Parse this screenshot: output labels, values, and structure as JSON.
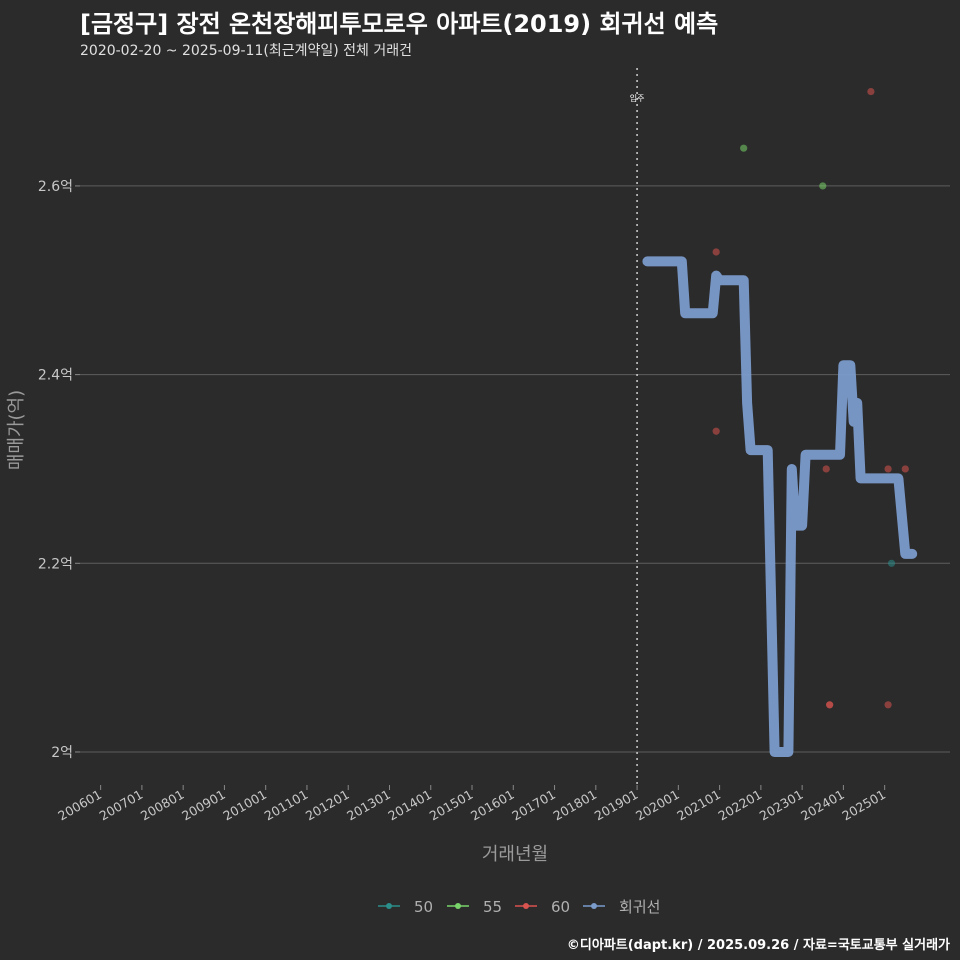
{
  "header": {
    "title": "[금정구] 장전 온천장해피투모로우 아파트(2019) 회귀선 예측",
    "subtitle": "2020-02-20 ~ 2025-09-11(최근계약일) 전체 거래건",
    "caption": "©디아파트(dapt.kr) / 2025.09.26 / 자료=국토교통부 실거래가"
  },
  "colors": {
    "background": "#2b2b2c",
    "grid": "#5e5e5e",
    "s50": "#2a8e8a",
    "s55": "#79d46a",
    "s60": "#d9534f",
    "regression": "#7b9bcb"
  },
  "chart_data": {
    "type": "line",
    "xlabel": "거래년월",
    "ylabel": "매매가(억)",
    "x_range": [
      "2005-07",
      "2026-08"
    ],
    "ylim": [
      1.965,
      2.725
    ],
    "y_ticks": [
      {
        "value": 2.0,
        "label": "2억"
      },
      {
        "value": 2.2,
        "label": "2.2억"
      },
      {
        "value": 2.4,
        "label": "2.4억"
      },
      {
        "value": 2.6,
        "label": "2.6억"
      }
    ],
    "x_ticks": [
      "200601",
      "200701",
      "200801",
      "200901",
      "201001",
      "201101",
      "201201",
      "201301",
      "201401",
      "201501",
      "201601",
      "201701",
      "201801",
      "201901",
      "202001",
      "202101",
      "202201",
      "202301",
      "202401",
      "202501"
    ],
    "vline": {
      "date": "2019-01",
      "label": "입주"
    },
    "legend": [
      {
        "name": "50",
        "color": "#2a8e8a"
      },
      {
        "name": "55",
        "color": "#79d46a"
      },
      {
        "name": "60",
        "color": "#d9534f"
      },
      {
        "name": "회귀선",
        "color": "#7b9bcb"
      }
    ],
    "scatter": [
      {
        "series": "55",
        "x": "2021-08",
        "y": 2.64
      },
      {
        "series": "55",
        "x": "2023-07",
        "y": 2.6
      },
      {
        "series": "60",
        "x": "2020-12",
        "y": 2.53
      },
      {
        "series": "60",
        "x": "2020-12",
        "y": 2.34
      },
      {
        "series": "60",
        "x": "2023-08",
        "y": 2.3
      },
      {
        "series": "60",
        "x": "2023-09",
        "y": 2.05
      },
      {
        "series": "60",
        "x": "2023-09",
        "y": 2.05
      },
      {
        "series": "60",
        "x": "2024-09",
        "y": 2.7
      },
      {
        "series": "60",
        "x": "2025-02",
        "y": 2.3
      },
      {
        "series": "60",
        "x": "2025-02",
        "y": 2.05
      },
      {
        "series": "60",
        "x": "2025-07",
        "y": 2.3
      },
      {
        "series": "50",
        "x": "2025-03",
        "y": 2.2
      }
    ],
    "regression": [
      {
        "x": "2019-04",
        "y": 2.52
      },
      {
        "x": "2020-02",
        "y": 2.52
      },
      {
        "x": "2020-03",
        "y": 2.465
      },
      {
        "x": "2020-11",
        "y": 2.465
      },
      {
        "x": "2020-12",
        "y": 2.505
      },
      {
        "x": "2021-01",
        "y": 2.5
      },
      {
        "x": "2021-08",
        "y": 2.5
      },
      {
        "x": "2021-09",
        "y": 2.37
      },
      {
        "x": "2021-10",
        "y": 2.32
      },
      {
        "x": "2022-03",
        "y": 2.32
      },
      {
        "x": "2022-05",
        "y": 2.0
      },
      {
        "x": "2022-09",
        "y": 2.0
      },
      {
        "x": "2022-10",
        "y": 2.3
      },
      {
        "x": "2022-11",
        "y": 2.24
      },
      {
        "x": "2023-01",
        "y": 2.24
      },
      {
        "x": "2023-02",
        "y": 2.315
      },
      {
        "x": "2023-12",
        "y": 2.315
      },
      {
        "x": "2024-01",
        "y": 2.41
      },
      {
        "x": "2024-03",
        "y": 2.41
      },
      {
        "x": "2024-04",
        "y": 2.35
      },
      {
        "x": "2024-05",
        "y": 2.37
      },
      {
        "x": "2024-06",
        "y": 2.29
      },
      {
        "x": "2024-10",
        "y": 2.29
      },
      {
        "x": "2025-05",
        "y": 2.29
      },
      {
        "x": "2025-07",
        "y": 2.21
      },
      {
        "x": "2025-09",
        "y": 2.21
      }
    ]
  }
}
